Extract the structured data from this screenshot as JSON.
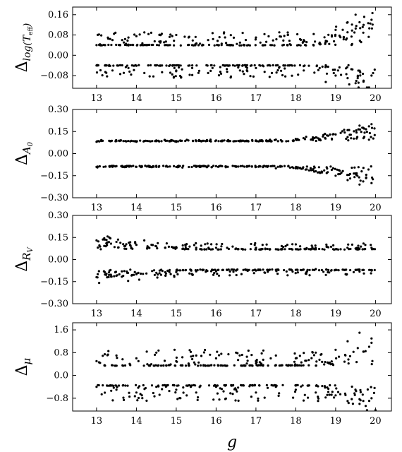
{
  "chart_data": [
    {
      "type": "scatter",
      "ylabel": "Δlog(Teff)",
      "ylabel_parts": {
        "delta": "Δ",
        "sub_prefix": "log(",
        "sub_var": "T",
        "sub_var_sub": "eff",
        "sub_suffix": ")"
      },
      "xlim": [
        12.4,
        20.4
      ],
      "ylim": [
        -0.13,
        0.19
      ],
      "yticks": [
        0.16,
        0.08,
        0.0,
        -0.08
      ],
      "ytick_labels": [
        "0.16",
        "0.08",
        "0.00",
        "−0.08"
      ],
      "xticks": [
        13,
        14,
        15,
        16,
        17,
        18,
        19,
        20
      ],
      "xtick_labels": [
        "13",
        "14",
        "15",
        "16",
        "17",
        "18",
        "19",
        "20"
      ],
      "series": [
        {
          "values": [
            [
              13.0,
              0.04
            ],
            [
              13.4,
              0.06
            ],
            [
              13.8,
              0.07
            ],
            [
              14.2,
              0.09
            ],
            [
              14.6,
              0.05
            ],
            [
              15.0,
              0.08
            ],
            [
              15.4,
              0.04
            ],
            [
              15.8,
              0.06
            ],
            [
              16.2,
              0.09
            ],
            [
              16.6,
              0.05
            ],
            [
              17.0,
              0.07
            ],
            [
              17.4,
              0.04
            ],
            [
              17.8,
              0.08
            ],
            [
              18.2,
              0.06
            ],
            [
              18.6,
              0.05
            ],
            [
              19.0,
              0.1
            ],
            [
              19.3,
              0.13
            ],
            [
              19.5,
              0.16
            ],
            [
              19.7,
              0.12
            ],
            [
              19.9,
              0.14
            ]
          ]
        },
        {
          "values": [
            [
              13.0,
              -0.04
            ],
            [
              13.4,
              -0.06
            ],
            [
              13.8,
              -0.05
            ],
            [
              14.2,
              -0.07
            ],
            [
              14.6,
              -0.04
            ],
            [
              15.0,
              -0.06
            ],
            [
              15.4,
              -0.05
            ],
            [
              15.8,
              -0.07
            ],
            [
              16.2,
              -0.04
            ],
            [
              16.6,
              -0.06
            ],
            [
              17.0,
              -0.05
            ],
            [
              17.4,
              -0.07
            ],
            [
              17.8,
              -0.04
            ],
            [
              18.2,
              -0.06
            ],
            [
              18.6,
              -0.05
            ],
            [
              19.0,
              -0.08
            ],
            [
              19.3,
              -0.09
            ],
            [
              19.5,
              -0.11
            ],
            [
              19.7,
              -0.1
            ],
            [
              19.9,
              -0.08
            ]
          ]
        }
      ],
      "scatter_model": {
        "base": 0.04,
        "spread": 0.05,
        "tail_start": 18.5,
        "tail_growth": 0.05,
        "center": 0.0
      }
    },
    {
      "type": "scatter",
      "ylabel": "ΔA0",
      "ylabel_parts": {
        "delta": "Δ",
        "sub_var": "A",
        "sub_var_sub": "0"
      },
      "xlim": [
        12.4,
        20.4
      ],
      "ylim": [
        -0.3,
        0.3
      ],
      "yticks": [
        0.3,
        0.15,
        0.0,
        -0.15,
        -0.3
      ],
      "ytick_labels": [
        "0.30",
        "0.15",
        "0.00",
        "−0.15",
        "−0.30"
      ],
      "xticks": [
        13,
        14,
        15,
        16,
        17,
        18,
        19,
        20
      ],
      "xtick_labels": [
        "13",
        "14",
        "15",
        "16",
        "17",
        "18",
        "19",
        "20"
      ],
      "series": [
        {
          "values": [
            [
              13.0,
              0.08
            ],
            [
              13.5,
              0.085
            ],
            [
              14.0,
              0.08
            ],
            [
              14.5,
              0.09
            ],
            [
              15.0,
              0.08
            ],
            [
              15.5,
              0.085
            ],
            [
              16.0,
              0.09
            ],
            [
              16.5,
              0.085
            ],
            [
              17.0,
              0.09
            ],
            [
              17.5,
              0.095
            ],
            [
              18.0,
              0.1
            ],
            [
              18.5,
              0.11
            ],
            [
              19.0,
              0.13
            ],
            [
              19.3,
              0.16
            ],
            [
              19.6,
              0.19
            ],
            [
              19.9,
              0.2
            ]
          ]
        },
        {
          "values": [
            [
              13.0,
              -0.09
            ],
            [
              13.5,
              -0.085
            ],
            [
              14.0,
              -0.09
            ],
            [
              14.5,
              -0.09
            ],
            [
              15.0,
              -0.09
            ],
            [
              15.5,
              -0.09
            ],
            [
              16.0,
              -0.085
            ],
            [
              16.5,
              -0.09
            ],
            [
              17.0,
              -0.09
            ],
            [
              17.5,
              -0.1
            ],
            [
              18.0,
              -0.1
            ],
            [
              18.5,
              -0.12
            ],
            [
              19.0,
              -0.15
            ],
            [
              19.3,
              -0.18
            ],
            [
              19.6,
              -0.21
            ],
            [
              19.9,
              -0.2
            ]
          ]
        }
      ],
      "scatter_model": {
        "base": 0.085,
        "spread": 0.008,
        "tail_start": 17.8,
        "tail_growth": 0.06,
        "center": 0.0
      }
    },
    {
      "type": "scatter",
      "ylabel": "ΔRV",
      "ylabel_parts": {
        "delta": "Δ",
        "sub_var": "R",
        "sub_var_sub": "V"
      },
      "xlim": [
        12.4,
        20.4
      ],
      "ylim": [
        -0.3,
        0.3
      ],
      "yticks": [
        0.3,
        0.15,
        0.0,
        -0.15,
        -0.3
      ],
      "ytick_labels": [
        "0.30",
        "0.15",
        "0.00",
        "−0.15",
        "−0.30"
      ],
      "xticks": [
        13,
        14,
        15,
        16,
        17,
        18,
        19,
        20
      ],
      "xtick_labels": [
        "13",
        "14",
        "15",
        "16",
        "17",
        "18",
        "19",
        "20"
      ],
      "series": [
        {
          "values": [
            [
              13.0,
              0.13
            ],
            [
              13.5,
              0.12
            ],
            [
              14.0,
              0.1
            ],
            [
              14.5,
              0.09
            ],
            [
              15.0,
              0.085
            ],
            [
              15.5,
              0.08
            ],
            [
              16.0,
              0.08
            ],
            [
              16.5,
              0.075
            ],
            [
              17.0,
              0.08
            ],
            [
              17.5,
              0.07
            ],
            [
              18.0,
              0.07
            ],
            [
              18.5,
              0.07
            ],
            [
              19.0,
              0.07
            ],
            [
              19.5,
              0.075
            ],
            [
              19.9,
              0.08
            ]
          ]
        },
        {
          "values": [
            [
              13.0,
              -0.12
            ],
            [
              13.5,
              -0.11
            ],
            [
              14.0,
              -0.1
            ],
            [
              14.5,
              -0.09
            ],
            [
              15.0,
              -0.085
            ],
            [
              15.5,
              -0.08
            ],
            [
              16.0,
              -0.08
            ],
            [
              16.5,
              -0.075
            ],
            [
              17.0,
              -0.075
            ],
            [
              17.5,
              -0.07
            ],
            [
              18.0,
              -0.07
            ],
            [
              18.5,
              -0.065
            ],
            [
              19.0,
              -0.07
            ],
            [
              19.5,
              -0.07
            ],
            [
              19.9,
              -0.075
            ]
          ]
        }
      ],
      "scatter_model": {
        "base": 0.07,
        "spread": 0.04,
        "tail_start": 30,
        "tail_growth": 0.0,
        "center": 0.0,
        "bright_excess": 0.06
      }
    },
    {
      "type": "scatter",
      "ylabel": "Δμ",
      "ylabel_parts": {
        "delta": "Δ",
        "sub_var": "μ",
        "sub_var_sub": ""
      },
      "xlabel": "g",
      "xlim": [
        12.4,
        20.4
      ],
      "ylim": [
        -1.25,
        1.85
      ],
      "yticks": [
        1.6,
        0.8,
        0.0,
        -0.8
      ],
      "ytick_labels": [
        "1.6",
        "0.8",
        "0.0",
        "−0.8"
      ],
      "xticks": [
        13,
        14,
        15,
        16,
        17,
        18,
        19,
        20
      ],
      "xtick_labels": [
        "13",
        "14",
        "15",
        "16",
        "17",
        "18",
        "19",
        "20"
      ],
      "series": [
        {
          "values": [
            [
              13.0,
              0.5
            ],
            [
              13.5,
              0.7
            ],
            [
              14.0,
              0.6
            ],
            [
              14.5,
              0.8
            ],
            [
              15.0,
              0.5
            ],
            [
              15.5,
              0.7
            ],
            [
              16.0,
              0.6
            ],
            [
              16.5,
              0.8
            ],
            [
              17.0,
              0.5
            ],
            [
              17.5,
              0.7
            ],
            [
              18.0,
              0.6
            ],
            [
              18.5,
              0.8
            ],
            [
              19.0,
              0.9
            ],
            [
              19.3,
              1.2
            ],
            [
              19.6,
              1.5
            ],
            [
              19.9,
              1.3
            ]
          ]
        },
        {
          "values": [
            [
              13.0,
              -0.4
            ],
            [
              13.5,
              -0.5
            ],
            [
              14.0,
              -0.6
            ],
            [
              14.5,
              -0.4
            ],
            [
              15.0,
              -0.5
            ],
            [
              15.5,
              -0.6
            ],
            [
              16.0,
              -0.4
            ],
            [
              16.5,
              -0.5
            ],
            [
              17.0,
              -0.6
            ],
            [
              17.5,
              -0.4
            ],
            [
              18.0,
              -0.5
            ],
            [
              18.5,
              -0.6
            ],
            [
              19.0,
              -0.7
            ],
            [
              19.3,
              -0.9
            ],
            [
              19.6,
              -1.0
            ],
            [
              19.9,
              -0.8
            ]
          ]
        }
      ],
      "scatter_model": {
        "base": 0.35,
        "spread": 0.55,
        "tail_start": 18.6,
        "tail_growth": 0.45,
        "center": 0.0
      }
    }
  ]
}
